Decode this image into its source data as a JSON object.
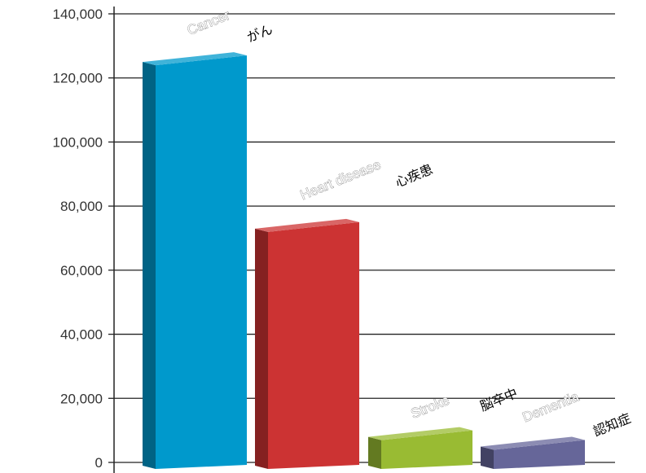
{
  "chart_data": {
    "type": "bar",
    "categories": [
      "Cancer",
      "Heart disease",
      "Stroke",
      "Dementia"
    ],
    "annotations": [
      "がん",
      "心疾患",
      "脳卒中",
      "認知症"
    ],
    "values": [
      127000,
      75000,
      10000,
      7000
    ],
    "ylim": [
      0,
      140000
    ],
    "yticks": [
      "0",
      "20,000",
      "40,000",
      "60,000",
      "80,000",
      "100,000",
      "120,000",
      "140,000"
    ],
    "grid": true,
    "colors": [
      "#0099cc",
      "#cc3333",
      "#99bb33",
      "#666699"
    ]
  }
}
